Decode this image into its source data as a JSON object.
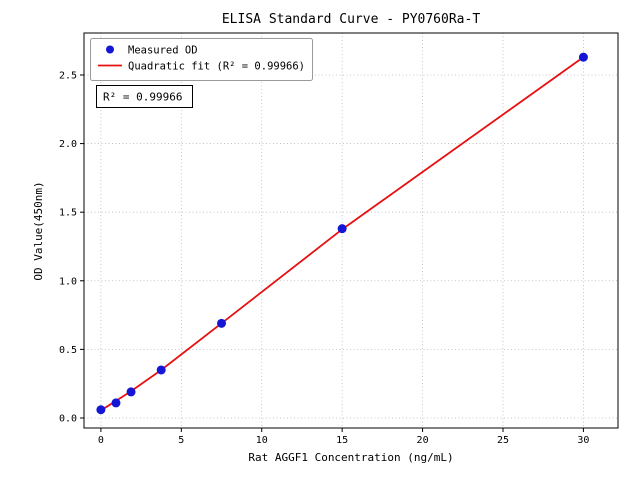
{
  "chart_data": {
    "type": "scatter",
    "title": "ELISA Standard Curve - PY0760Ra-T",
    "xlabel": "Rat AGGF1 Concentration (ng/mL)",
    "ylabel": "OD Value(450nm)",
    "xlim": [
      -1.05,
      32.15
    ],
    "ylim": [
      -0.073,
      2.806
    ],
    "xticks": [
      0,
      5,
      10,
      15,
      20,
      25,
      30
    ],
    "xtick_labels": [
      "0",
      "5",
      "10",
      "15",
      "20",
      "25",
      "30"
    ],
    "yticks": [
      0.0,
      0.5,
      1.0,
      1.5,
      2.0,
      2.5
    ],
    "ytick_labels": [
      "0.0",
      "0.5",
      "1.0",
      "1.5",
      "2.0",
      "2.5"
    ],
    "grid": true,
    "legend_position": "upper left",
    "annotation": "R² = 0.99966",
    "series": [
      {
        "name": "Measured OD",
        "type": "scatter",
        "color": "#1515d6",
        "x": [
          0,
          0.938,
          1.875,
          3.75,
          7.5,
          15,
          30
        ],
        "y": [
          0.06,
          0.11,
          0.19,
          0.35,
          0.69,
          1.38,
          2.63
        ]
      },
      {
        "name": "Quadratic fit (R² = 0.99966)",
        "type": "line",
        "color": "#e81010",
        "x": [
          0,
          0.938,
          1.875,
          3.75,
          7.5,
          15,
          30
        ],
        "y": [
          0.055,
          0.125,
          0.195,
          0.35,
          0.69,
          1.375,
          2.63
        ]
      }
    ]
  }
}
